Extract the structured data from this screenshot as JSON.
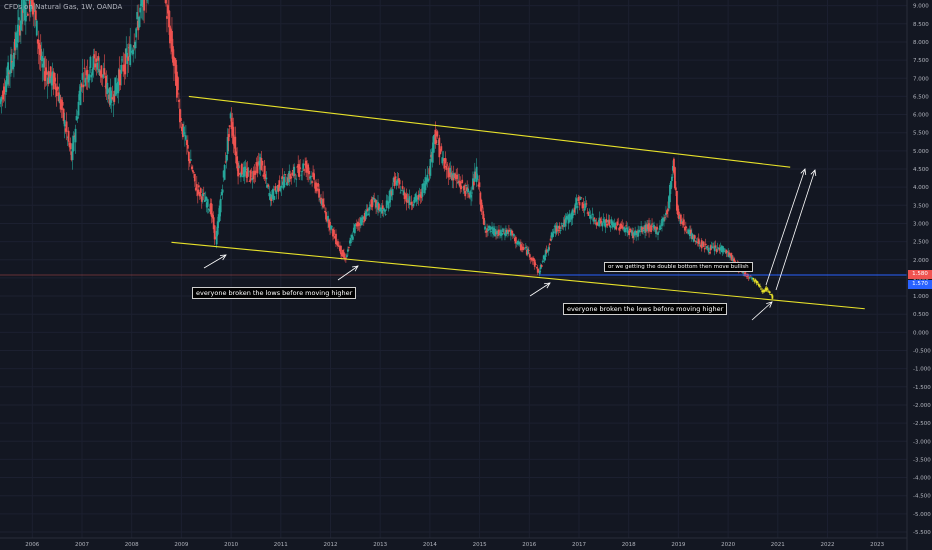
{
  "header": {
    "symbol_title": "CFDs on Natural Gas, 1W, OANDA"
  },
  "annotations": {
    "note_left": "everyone broken the lows before moving higher",
    "note_right": "everyone broken the lows before moving higher",
    "note_double_bottom": "or we getting the double bottom then move bullish"
  },
  "badges": {
    "current_price": "1.580",
    "previous_close": "1.570"
  },
  "colors": {
    "background": "#131722",
    "bull_candle": "#26a69a",
    "bear_candle": "#ef5350",
    "channel_line": "#e8e22a",
    "horizontal_line": "#2962ff",
    "arrow": "#ffffff",
    "current_price_badge": "#ef5350",
    "prev_close_badge": "#2962ff"
  },
  "chart_data": {
    "type": "candlestick",
    "title": "CFDs on Natural Gas, 1W, OANDA",
    "y_ticks": [
      "9.000",
      "8.500",
      "8.000",
      "7.500",
      "7.000",
      "6.500",
      "6.000",
      "5.500",
      "5.000",
      "4.500",
      "4.000",
      "3.500",
      "3.000",
      "2.500",
      "2.000",
      "1.500",
      "1.000",
      "0.500",
      "0.000",
      "-0.500",
      "-1.000",
      "-1.500",
      "-2.000",
      "-2.500",
      "-3.000",
      "-3.500",
      "-4.000",
      "-4.500",
      "-5.000",
      "-5.500"
    ],
    "x_ticks": [
      "2006",
      "2007",
      "2008",
      "2009",
      "2010",
      "2011",
      "2012",
      "2013",
      "2014",
      "2015",
      "2016",
      "2017",
      "2018",
      "2019",
      "2020",
      "2021",
      "2022",
      "2023"
    ],
    "ylim": [
      -5.7,
      9.2
    ],
    "xlim": [
      2005.35,
      2023.6
    ],
    "price_path": [
      [
        2005.35,
        6.3
      ],
      [
        2005.6,
        7.5
      ],
      [
        2005.8,
        8.8
      ],
      [
        2006.0,
        9.3
      ],
      [
        2006.2,
        7.3
      ],
      [
        2006.5,
        6.8
      ],
      [
        2006.8,
        4.8
      ],
      [
        2007.0,
        7.0
      ],
      [
        2007.3,
        7.5
      ],
      [
        2007.6,
        6.4
      ],
      [
        2007.8,
        7.2
      ],
      [
        2008.0,
        7.8
      ],
      [
        2008.3,
        9.5
      ],
      [
        2008.5,
        13.0
      ],
      [
        2008.7,
        9.0
      ],
      [
        2008.9,
        7.0
      ],
      [
        2009.0,
        5.8
      ],
      [
        2009.3,
        4.0
      ],
      [
        2009.6,
        3.4
      ],
      [
        2009.7,
        2.5
      ],
      [
        2009.9,
        4.8
      ],
      [
        2010.0,
        5.9
      ],
      [
        2010.15,
        4.5
      ],
      [
        2010.4,
        4.3
      ],
      [
        2010.6,
        4.7
      ],
      [
        2010.8,
        3.7
      ],
      [
        2011.0,
        4.1
      ],
      [
        2011.2,
        4.3
      ],
      [
        2011.5,
        4.6
      ],
      [
        2011.7,
        4.1
      ],
      [
        2011.9,
        3.3
      ],
      [
        2012.1,
        2.6
      ],
      [
        2012.3,
        2.0
      ],
      [
        2012.5,
        2.9
      ],
      [
        2012.7,
        3.2
      ],
      [
        2012.85,
        3.6
      ],
      [
        2013.1,
        3.3
      ],
      [
        2013.3,
        4.2
      ],
      [
        2013.6,
        3.6
      ],
      [
        2013.8,
        3.7
      ],
      [
        2014.0,
        4.5
      ],
      [
        2014.1,
        5.5
      ],
      [
        2014.3,
        4.6
      ],
      [
        2014.6,
        4.1
      ],
      [
        2014.8,
        3.8
      ],
      [
        2014.95,
        4.4
      ],
      [
        2015.1,
        2.9
      ],
      [
        2015.4,
        2.7
      ],
      [
        2015.6,
        2.8
      ],
      [
        2015.8,
        2.4
      ],
      [
        2016.0,
        2.2
      ],
      [
        2016.2,
        1.65
      ],
      [
        2016.5,
        2.8
      ],
      [
        2016.7,
        3.0
      ],
      [
        2016.9,
        3.3
      ],
      [
        2017.0,
        3.7
      ],
      [
        2017.3,
        3.1
      ],
      [
        2017.6,
        3.0
      ],
      [
        2017.9,
        2.9
      ],
      [
        2018.1,
        2.7
      ],
      [
        2018.4,
        2.9
      ],
      [
        2018.6,
        2.8
      ],
      [
        2018.8,
        3.4
      ],
      [
        2018.9,
        4.7
      ],
      [
        2019.0,
        3.2
      ],
      [
        2019.3,
        2.6
      ],
      [
        2019.6,
        2.3
      ],
      [
        2019.9,
        2.3
      ],
      [
        2020.05,
        2.1
      ],
      [
        2020.2,
        1.8
      ],
      [
        2020.35,
        1.6
      ],
      [
        2020.5,
        1.5
      ]
    ],
    "highlighted_path": [
      [
        2020.5,
        1.5
      ],
      [
        2020.6,
        1.35
      ],
      [
        2020.65,
        1.25
      ],
      [
        2020.7,
        1.15
      ],
      [
        2020.78,
        1.2
      ],
      [
        2020.85,
        1.05
      ],
      [
        2020.9,
        0.95
      ]
    ],
    "channel_upper": [
      [
        2009.15,
        6.5
      ],
      [
        2021.25,
        4.55
      ]
    ],
    "channel_lower": [
      [
        2008.8,
        2.48
      ],
      [
        2022.75,
        0.65
      ]
    ],
    "horizontal_levels": [
      1.58
    ]
  }
}
